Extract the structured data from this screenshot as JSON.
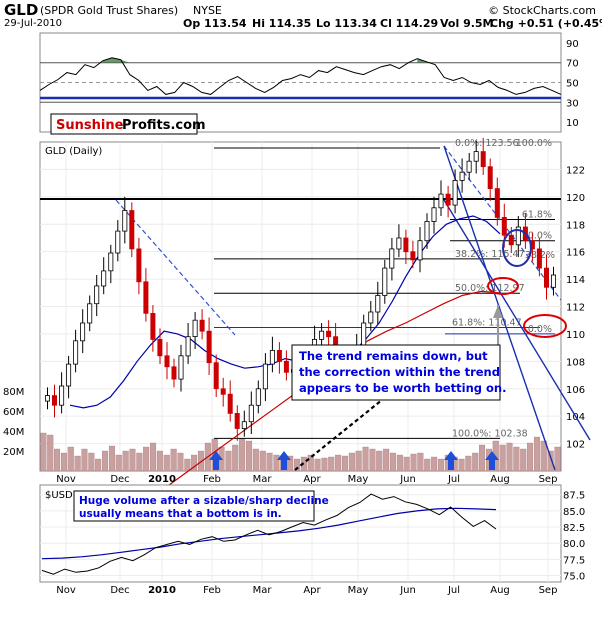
{
  "header": {
    "symbol": "GLD",
    "name": "(SPDR Gold Trust Shares)",
    "exchange": "NYSE",
    "date": "29-Jul-2010",
    "open": "Op 113.54",
    "high": "Hi 114.35",
    "low": "Lo 113.34",
    "close": "Cl 114.29",
    "volume": "Vol 9.5M",
    "change": "Chg +0.51 (+0.45%)",
    "copyright": "© StockCharts.com"
  },
  "logo": {
    "part1": "Sunshine",
    "part2": "Profits.com"
  },
  "annotations": {
    "main_callout": [
      "The trend remains down, but",
      "the correction within the trend",
      "appears to be worth betting on."
    ],
    "volume_callout": [
      "Huge volume after a sizable/sharp decline",
      "usually means that a bottom is in."
    ]
  },
  "colors": {
    "up": "#000000",
    "down": "#cc0000",
    "ma50": "#0000aa",
    "ma200": "#cc0000",
    "volume": "#c8a0a0",
    "fib": "#000000",
    "arrow": "#1f4ed8",
    "callout_text": "#0000dd"
  },
  "chart_data": [
    {
      "type": "line",
      "name": "rsi",
      "y_ticks": [
        "90",
        "70",
        "50",
        "30",
        "10"
      ],
      "ylim": [
        0,
        100
      ],
      "levels": [
        70,
        50,
        30
      ],
      "values": [
        42,
        48,
        53,
        60,
        58,
        68,
        65,
        72,
        75,
        73,
        58,
        52,
        42,
        46,
        38,
        40,
        50,
        46,
        40,
        38,
        45,
        52,
        56,
        50,
        44,
        40,
        45,
        52,
        54,
        58,
        55,
        62,
        60,
        66,
        63,
        60,
        58,
        62,
        66,
        68,
        64,
        70,
        74,
        71,
        68,
        55,
        52,
        55,
        50,
        48,
        52,
        45,
        42,
        38,
        40,
        44,
        46,
        42,
        38
      ]
    },
    {
      "type": "candlestick",
      "name": "price",
      "label": "GLD (Daily)",
      "ylim": [
        100,
        124
      ],
      "y_ticks": [
        "122",
        "120",
        "118",
        "116",
        "114",
        "112",
        "110",
        "108",
        "106",
        "104",
        "102"
      ],
      "x_ticks": [
        "Nov",
        "Dec",
        "2010",
        "Feb",
        "Mar",
        "Apr",
        "May",
        "Jun",
        "Jul",
        "Aug",
        "Sep"
      ],
      "close": [
        105.5,
        104.8,
        106.2,
        107.8,
        109.5,
        110.8,
        112.2,
        113.5,
        114.6,
        115.9,
        117.5,
        119.0,
        116.2,
        113.8,
        111.5,
        109.6,
        108.4,
        107.6,
        106.7,
        108.4,
        109.8,
        111.0,
        110.2,
        107.9,
        106.0,
        105.6,
        104.2,
        103.1,
        103.6,
        104.8,
        106.0,
        107.8,
        108.8,
        108.0,
        107.2,
        107.4,
        106.9,
        108.0,
        109.6,
        110.2,
        109.8,
        108.5,
        107.4,
        107.8,
        109.0,
        110.8,
        111.6,
        112.8,
        114.8,
        116.2,
        117.0,
        116.0,
        115.4,
        116.8,
        118.2,
        119.2,
        120.2,
        119.4,
        121.2,
        121.8,
        122.6,
        123.3,
        122.2,
        120.6,
        118.5,
        117.2,
        116.5,
        117.8,
        116.8,
        116.2,
        114.8,
        113.4,
        114.3
      ],
      "ma50": [
        104.8,
        104.6,
        104.8,
        105.4,
        106.6,
        108.0,
        109.2,
        110.2,
        110.0,
        109.6,
        108.8,
        108.2,
        107.8,
        107.5,
        107.6,
        107.8,
        108.2,
        108.0,
        107.6,
        107.5,
        107.8,
        108.6,
        109.6,
        110.8,
        112.4,
        114.2,
        115.8,
        117.1,
        118.0,
        118.4,
        118.6,
        118.2,
        117.3
      ],
      "ma200": [
        98.5,
        99.5,
        100.5,
        101.5,
        102.5,
        103.5,
        104.5,
        105.5,
        106.5,
        107.5,
        108.5,
        109.5,
        110.2,
        110.8,
        111.5,
        112.2,
        112.8,
        113.1,
        113.0
      ],
      "fib_levels": [
        {
          "label": "0.0%: 123.56",
          "value": 123.56
        },
        {
          "label": "100.0%",
          "value": 123.56
        },
        {
          "label": "61.8%",
          "value": 118.35
        },
        {
          "label": "50.0%",
          "value": 116.8
        },
        {
          "label": "38.2%: 115.47",
          "value": 115.47
        },
        {
          "label": "38.2%",
          "value": 115.4
        },
        {
          "label": "50.0%: 112.97",
          "value": 112.97
        },
        {
          "label": "61.8%: 110.47",
          "value": 110.47
        },
        {
          "label": "0.0%",
          "value": 110.0
        },
        {
          "label": "100.0%: 102.38",
          "value": 102.38
        }
      ],
      "resistance": 119.7
    },
    {
      "type": "bar",
      "name": "volume",
      "y_ticks": [
        "80M",
        "60M",
        "40M",
        "20M"
      ],
      "ylim": [
        0,
        80
      ],
      "values": [
        38,
        36,
        22,
        18,
        24,
        15,
        22,
        18,
        12,
        20,
        25,
        16,
        20,
        22,
        18,
        24,
        28,
        20,
        16,
        22,
        18,
        12,
        16,
        20,
        28,
        32,
        24,
        20,
        26,
        32,
        30,
        22,
        20,
        18,
        16,
        14,
        15,
        12,
        14,
        16,
        12,
        13,
        14,
        16,
        15,
        18,
        20,
        24,
        22,
        20,
        22,
        18,
        16,
        14,
        17,
        18,
        12,
        14,
        12,
        16,
        14,
        12,
        15,
        18,
        26,
        22,
        30,
        26,
        28,
        24,
        22,
        28,
        34,
        30,
        20,
        24
      ]
    },
    {
      "type": "line",
      "name": "usd",
      "label": "$USD",
      "ylim": [
        74,
        89
      ],
      "y_ticks": [
        "87.5",
        "85.0",
        "82.5",
        "80.0",
        "77.5",
        "75.0"
      ],
      "x_ticks": [
        "Nov",
        "Dec",
        "2010",
        "Feb",
        "Mar",
        "Apr",
        "May",
        "Jun",
        "Jul",
        "Aug",
        "Sep"
      ],
      "values": [
        75.8,
        75.2,
        76.0,
        75.5,
        75.7,
        76.2,
        77.2,
        77.8,
        77.3,
        78.2,
        79.3,
        79.8,
        80.3,
        79.8,
        80.6,
        81.0,
        80.3,
        80.5,
        81.3,
        82.0,
        81.3,
        81.8,
        82.5,
        83.2,
        82.8,
        83.6,
        84.3,
        85.5,
        86.3,
        87.6,
        86.8,
        87.2,
        86.4,
        86.0,
        85.3,
        84.4,
        85.6,
        84.0,
        82.6,
        83.5,
        82.2
      ],
      "ma": [
        77.6,
        77.7,
        77.9,
        78.2,
        78.6,
        79.0,
        79.4,
        79.9,
        80.3,
        80.7,
        81.0,
        81.3,
        81.6,
        81.9,
        82.3,
        82.8,
        83.4,
        84.0,
        84.6,
        85.0,
        85.3,
        85.4,
        85.3,
        85.2
      ]
    }
  ]
}
